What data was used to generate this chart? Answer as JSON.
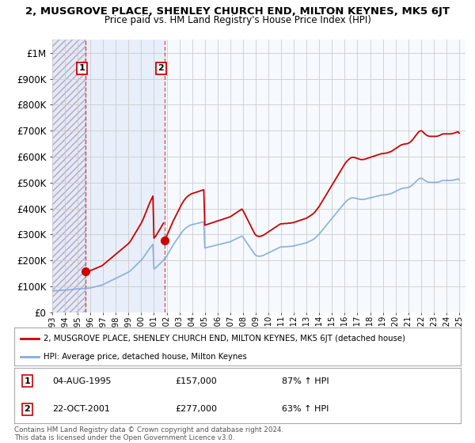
{
  "title": "2, MUSGROVE PLACE, SHENLEY CHURCH END, MILTON KEYNES, MK5 6JT",
  "subtitle": "Price paid vs. HM Land Registry's House Price Index (HPI)",
  "sale1_date": 1995.59,
  "sale1_price": 157000,
  "sale2_date": 2001.81,
  "sale2_price": 277000,
  "hpi_label": "HPI: Average price, detached house, Milton Keynes",
  "property_label": "2, MUSGROVE PLACE, SHENLEY CHURCH END, MILTON KEYNES, MK5 6JT (detached house)",
  "footer": "Contains HM Land Registry data © Crown copyright and database right 2024.\nThis data is licensed under the Open Government Licence v3.0.",
  "ylim_max": 1050000,
  "xmin": 1993,
  "xmax": 2025.5,
  "property_color": "#cc0000",
  "hpi_color": "#88aadd",
  "hatch_color": "#aaaacc",
  "pre_sale_bg": "#dde0ee",
  "between_sales_bg": "#ddeeff",
  "post_sale_bg": "#eef4ff",
  "yticks": [
    0,
    100000,
    200000,
    300000,
    400000,
    500000,
    600000,
    700000,
    800000,
    900000,
    1000000
  ],
  "ytick_labels": [
    "£0",
    "£100K",
    "£200K",
    "£300K",
    "£400K",
    "£500K",
    "£600K",
    "£700K",
    "£800K",
    "£900K",
    "£1M"
  ],
  "hpi_years": [
    1993.0,
    1993.083,
    1993.167,
    1993.25,
    1993.333,
    1993.417,
    1993.5,
    1993.583,
    1993.667,
    1993.75,
    1993.833,
    1993.917,
    1994.0,
    1994.083,
    1994.167,
    1994.25,
    1994.333,
    1994.417,
    1994.5,
    1994.583,
    1994.667,
    1994.75,
    1994.833,
    1994.917,
    1995.0,
    1995.083,
    1995.167,
    1995.25,
    1995.333,
    1995.417,
    1995.5,
    1995.583,
    1995.667,
    1995.75,
    1995.833,
    1995.917,
    1996.0,
    1996.083,
    1996.167,
    1996.25,
    1996.333,
    1996.417,
    1996.5,
    1996.583,
    1996.667,
    1996.75,
    1996.833,
    1996.917,
    1997.0,
    1997.083,
    1997.167,
    1997.25,
    1997.333,
    1997.417,
    1997.5,
    1997.583,
    1997.667,
    1997.75,
    1997.833,
    1997.917,
    1998.0,
    1998.083,
    1998.167,
    1998.25,
    1998.333,
    1998.417,
    1998.5,
    1998.583,
    1998.667,
    1998.75,
    1998.833,
    1998.917,
    1999.0,
    1999.083,
    1999.167,
    1999.25,
    1999.333,
    1999.417,
    1999.5,
    1999.583,
    1999.667,
    1999.75,
    1999.833,
    1999.917,
    2000.0,
    2000.083,
    2000.167,
    2000.25,
    2000.333,
    2000.417,
    2000.5,
    2000.583,
    2000.667,
    2000.75,
    2000.833,
    2000.917,
    2001.0,
    2001.083,
    2001.167,
    2001.25,
    2001.333,
    2001.417,
    2001.5,
    2001.583,
    2001.667,
    2001.75,
    2001.833,
    2001.917,
    2002.0,
    2002.083,
    2002.167,
    2002.25,
    2002.333,
    2002.417,
    2002.5,
    2002.583,
    2002.667,
    2002.75,
    2002.833,
    2002.917,
    2003.0,
    2003.083,
    2003.167,
    2003.25,
    2003.333,
    2003.417,
    2003.5,
    2003.583,
    2003.667,
    2003.75,
    2003.833,
    2003.917,
    2004.0,
    2004.083,
    2004.167,
    2004.25,
    2004.333,
    2004.417,
    2004.5,
    2004.583,
    2004.667,
    2004.75,
    2004.833,
    2004.917,
    2005.0,
    2005.083,
    2005.167,
    2005.25,
    2005.333,
    2005.417,
    2005.5,
    2005.583,
    2005.667,
    2005.75,
    2005.833,
    2005.917,
    2006.0,
    2006.083,
    2006.167,
    2006.25,
    2006.333,
    2006.417,
    2006.5,
    2006.583,
    2006.667,
    2006.75,
    2006.833,
    2006.917,
    2007.0,
    2007.083,
    2007.167,
    2007.25,
    2007.333,
    2007.417,
    2007.5,
    2007.583,
    2007.667,
    2007.75,
    2007.833,
    2007.917,
    2008.0,
    2008.083,
    2008.167,
    2008.25,
    2008.333,
    2008.417,
    2008.5,
    2008.583,
    2008.667,
    2008.75,
    2008.833,
    2008.917,
    2009.0,
    2009.083,
    2009.167,
    2009.25,
    2009.333,
    2009.417,
    2009.5,
    2009.583,
    2009.667,
    2009.75,
    2009.833,
    2009.917,
    2010.0,
    2010.083,
    2010.167,
    2010.25,
    2010.333,
    2010.417,
    2010.5,
    2010.583,
    2010.667,
    2010.75,
    2010.833,
    2010.917,
    2011.0,
    2011.083,
    2011.167,
    2011.25,
    2011.333,
    2011.417,
    2011.5,
    2011.583,
    2011.667,
    2011.75,
    2011.833,
    2011.917,
    2012.0,
    2012.083,
    2012.167,
    2012.25,
    2012.333,
    2012.417,
    2012.5,
    2012.583,
    2012.667,
    2012.75,
    2012.833,
    2012.917,
    2013.0,
    2013.083,
    2013.167,
    2013.25,
    2013.333,
    2013.417,
    2013.5,
    2013.583,
    2013.667,
    2013.75,
    2013.833,
    2013.917,
    2014.0,
    2014.083,
    2014.167,
    2014.25,
    2014.333,
    2014.417,
    2014.5,
    2014.583,
    2014.667,
    2014.75,
    2014.833,
    2014.917,
    2015.0,
    2015.083,
    2015.167,
    2015.25,
    2015.333,
    2015.417,
    2015.5,
    2015.583,
    2015.667,
    2015.75,
    2015.833,
    2015.917,
    2016.0,
    2016.083,
    2016.167,
    2016.25,
    2016.333,
    2016.417,
    2016.5,
    2016.583,
    2016.667,
    2016.75,
    2016.833,
    2016.917,
    2017.0,
    2017.083,
    2017.167,
    2017.25,
    2017.333,
    2017.417,
    2017.5,
    2017.583,
    2017.667,
    2017.75,
    2017.833,
    2017.917,
    2018.0,
    2018.083,
    2018.167,
    2018.25,
    2018.333,
    2018.417,
    2018.5,
    2018.583,
    2018.667,
    2018.75,
    2018.833,
    2018.917,
    2019.0,
    2019.083,
    2019.167,
    2019.25,
    2019.333,
    2019.417,
    2019.5,
    2019.583,
    2019.667,
    2019.75,
    2019.833,
    2019.917,
    2020.0,
    2020.083,
    2020.167,
    2020.25,
    2020.333,
    2020.417,
    2020.5,
    2020.583,
    2020.667,
    2020.75,
    2020.833,
    2020.917,
    2021.0,
    2021.083,
    2021.167,
    2021.25,
    2021.333,
    2021.417,
    2021.5,
    2021.583,
    2021.667,
    2021.75,
    2021.833,
    2021.917,
    2022.0,
    2022.083,
    2022.167,
    2022.25,
    2022.333,
    2022.417,
    2022.5,
    2022.583,
    2022.667,
    2022.75,
    2022.833,
    2022.917,
    2023.0,
    2023.083,
    2023.167,
    2023.25,
    2023.333,
    2023.417,
    2023.5,
    2023.583,
    2023.667,
    2023.75,
    2023.833,
    2023.917,
    2024.0,
    2024.083,
    2024.167,
    2024.25,
    2024.333,
    2024.417,
    2024.5,
    2024.583,
    2024.667,
    2024.75,
    2024.833,
    2024.917,
    2025.0
  ],
  "hpi_values": [
    82000,
    82500,
    83000,
    83200,
    83400,
    83600,
    84000,
    84200,
    84500,
    84800,
    85000,
    85200,
    85500,
    85800,
    86000,
    86200,
    86500,
    87000,
    87500,
    88000,
    88500,
    89000,
    89500,
    90000,
    90000,
    90200,
    90500,
    90800,
    91000,
    91200,
    91500,
    91800,
    92000,
    92500,
    93000,
    93500,
    94000,
    95000,
    96000,
    97000,
    98000,
    99000,
    100000,
    101000,
    102000,
    103000,
    104000,
    105000,
    107000,
    109000,
    111000,
    113000,
    115000,
    117000,
    119000,
    121000,
    123000,
    125000,
    127000,
    129000,
    131000,
    133000,
    135000,
    137000,
    139000,
    141000,
    143000,
    145000,
    147000,
    149000,
    151000,
    153000,
    155000,
    158000,
    161000,
    165000,
    169000,
    173000,
    177000,
    181000,
    185000,
    189000,
    193000,
    197000,
    201000,
    206000,
    211000,
    217000,
    223000,
    229000,
    235000,
    241000,
    247000,
    252000,
    257000,
    262000,
    167000,
    170000,
    173000,
    177000,
    181000,
    185000,
    189000,
    193000,
    197000,
    201000,
    206000,
    211000,
    217000,
    224000,
    231000,
    238000,
    245000,
    252000,
    259000,
    265000,
    271000,
    277000,
    283000,
    289000,
    295000,
    301000,
    307000,
    312000,
    317000,
    321000,
    325000,
    328000,
    331000,
    333000,
    335000,
    337000,
    338000,
    339000,
    340000,
    341000,
    342000,
    343000,
    344000,
    345000,
    346000,
    347000,
    348000,
    349000,
    248000,
    249000,
    250000,
    251000,
    252000,
    253000,
    254000,
    255000,
    256000,
    257000,
    258000,
    259000,
    260000,
    261000,
    262000,
    263000,
    264000,
    265000,
    266000,
    267000,
    268000,
    269000,
    270000,
    271000,
    272000,
    274000,
    276000,
    278000,
    280000,
    282000,
    284000,
    286000,
    288000,
    290000,
    292000,
    294000,
    290000,
    284000,
    278000,
    272000,
    266000,
    260000,
    254000,
    248000,
    242000,
    236000,
    230000,
    224000,
    220000,
    218000,
    217000,
    216000,
    216000,
    217000,
    218000,
    219000,
    221000,
    223000,
    225000,
    227000,
    229000,
    231000,
    233000,
    235000,
    237000,
    239000,
    241000,
    243000,
    245000,
    247000,
    249000,
    251000,
    252000,
    252000,
    252000,
    253000,
    253000,
    253000,
    253000,
    254000,
    254000,
    254000,
    255000,
    255000,
    256000,
    257000,
    258000,
    259000,
    260000,
    261000,
    262000,
    263000,
    264000,
    265000,
    266000,
    267000,
    268000,
    270000,
    272000,
    274000,
    276000,
    278000,
    280000,
    283000,
    286000,
    290000,
    294000,
    298000,
    302000,
    307000,
    312000,
    317000,
    322000,
    327000,
    332000,
    337000,
    342000,
    347000,
    352000,
    357000,
    362000,
    367000,
    372000,
    377000,
    382000,
    387000,
    392000,
    397000,
    402000,
    407000,
    412000,
    417000,
    422000,
    426000,
    430000,
    433000,
    436000,
    438000,
    440000,
    441000,
    441000,
    441000,
    440000,
    439000,
    438000,
    437000,
    436000,
    435000,
    435000,
    435000,
    435000,
    436000,
    437000,
    438000,
    439000,
    440000,
    441000,
    442000,
    443000,
    444000,
    445000,
    446000,
    447000,
    448000,
    449000,
    450000,
    451000,
    452000,
    452000,
    452000,
    453000,
    453000,
    454000,
    455000,
    456000,
    457000,
    458000,
    460000,
    462000,
    464000,
    466000,
    468000,
    470000,
    472000,
    474000,
    476000,
    477000,
    478000,
    479000,
    479000,
    480000,
    480000,
    481000,
    483000,
    485000,
    488000,
    491000,
    495000,
    499000,
    503000,
    507000,
    511000,
    514000,
    516000,
    517000,
    516000,
    513000,
    510000,
    507000,
    505000,
    503000,
    502000,
    501000,
    501000,
    501000,
    501000,
    501000,
    501000,
    501000,
    501000,
    502000,
    503000,
    504000,
    506000,
    507000,
    508000,
    508000,
    508000,
    508000,
    508000,
    508000,
    508000,
    508000,
    509000,
    509000,
    510000,
    511000,
    512000,
    513000,
    514000,
    510000
  ]
}
